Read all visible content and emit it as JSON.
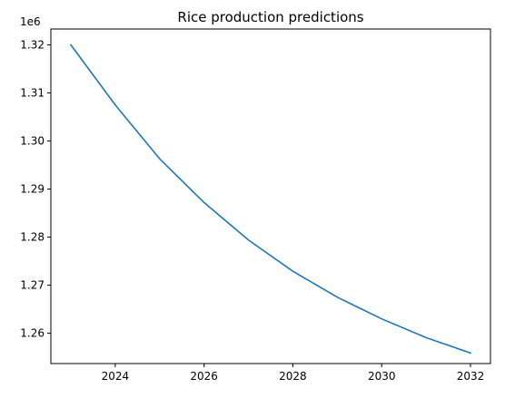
{
  "chart_data": {
    "type": "line",
    "title": "Rice production predictions",
    "xlabel": "",
    "ylabel": "",
    "y_offset_label": "1e6",
    "xlim": [
      2022.55,
      2032.45
    ],
    "ylim": [
      1.2537,
      1.3233
    ],
    "x_ticks": [
      2024,
      2026,
      2028,
      2030,
      2032
    ],
    "x_tick_labels": [
      "2024",
      "2026",
      "2028",
      "2030",
      "2032"
    ],
    "y_ticks": [
      1.26,
      1.27,
      1.28,
      1.29,
      1.3,
      1.31,
      1.32
    ],
    "y_tick_labels": [
      "1.26",
      "1.27",
      "1.28",
      "1.29",
      "1.30",
      "1.31",
      "1.32"
    ],
    "grid": false,
    "legend": "none",
    "series": [
      {
        "color": "#1f77b4",
        "x": [
          2023,
          2024,
          2025,
          2026,
          2027,
          2028,
          2029,
          2030,
          2031,
          2032
        ],
        "y": [
          1.32,
          1.3075,
          1.2963,
          1.2872,
          1.2794,
          1.2729,
          1.2675,
          1.263,
          1.2591,
          1.2559
        ]
      }
    ]
  }
}
